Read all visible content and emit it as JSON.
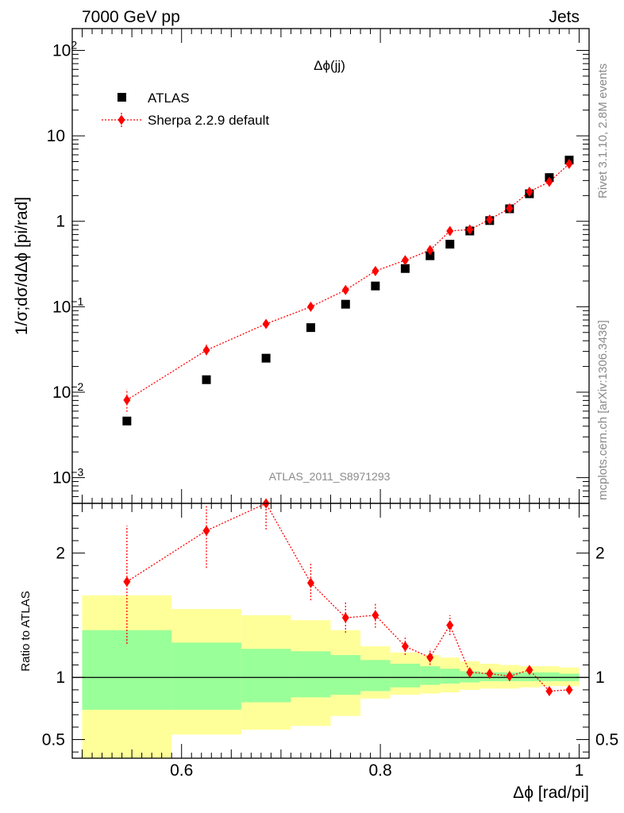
{
  "header": {
    "left": "7000 GeV pp",
    "right": "Jets"
  },
  "side_labels": {
    "rivet": "Rivet 3.1.10,  2.8M events",
    "mcplots": "mcplots.cern.ch [arXiv:1306.3436]"
  },
  "analysis_id": "ATLAS_2011_S8971293",
  "colors": {
    "data": "#000000",
    "mc": "#ff0000",
    "band_inner": "#99ff99",
    "band_outer": "#ffff99"
  },
  "chart_data": [
    {
      "type": "scatter",
      "title": "Δϕ(jj)",
      "xlabel": "",
      "ylabel": "1/σ;dσ/dΔϕ [pi/rad]",
      "xlim": [
        0.49,
        1.01
      ],
      "ylim": [
        0.0005,
        180
      ],
      "yscale": "log",
      "ytick_labels": [
        {
          "base": "10",
          "exp": "2",
          "value": 100
        },
        {
          "base": "10",
          "exp": "",
          "value": 10
        },
        {
          "base": "1",
          "exp": "",
          "value": 1
        },
        {
          "base": "10",
          "exp": "−1",
          "value": 0.1
        },
        {
          "base": "10",
          "exp": "−2",
          "value": 0.01
        },
        {
          "base": "10",
          "exp": "−3",
          "value": 0.001
        }
      ],
      "legend": {
        "position": "top-left",
        "entries": [
          "ATLAS",
          "Sherpa 2.2.9 default"
        ]
      },
      "series": [
        {
          "name": "ATLAS",
          "marker": "square",
          "x": [
            0.545,
            0.625,
            0.685,
            0.73,
            0.765,
            0.795,
            0.825,
            0.85,
            0.87,
            0.89,
            0.91,
            0.93,
            0.95,
            0.97,
            0.99
          ],
          "y": [
            0.0046,
            0.014,
            0.025,
            0.057,
            0.107,
            0.175,
            0.28,
            0.395,
            0.54,
            0.77,
            1.02,
            1.4,
            2.1,
            3.25,
            5.2
          ]
        },
        {
          "name": "Sherpa 2.2.9 default",
          "marker": "diamond",
          "x": [
            0.545,
            0.625,
            0.685,
            0.73,
            0.765,
            0.795,
            0.825,
            0.85,
            0.87,
            0.89,
            0.91,
            0.93,
            0.95,
            0.97,
            0.99
          ],
          "y": [
            0.0081,
            0.031,
            0.063,
            0.1,
            0.157,
            0.262,
            0.35,
            0.46,
            0.77,
            0.8,
            1.05,
            1.42,
            2.22,
            2.9,
            4.7
          ],
          "yerr_low": [
            0.0022,
            0.004,
            0.006,
            0.008,
            0.013,
            0.02,
            0.02,
            0.03,
            0.05,
            0.06,
            0.04,
            0.07,
            0.1,
            0.25,
            0.3
          ],
          "yerr_high": [
            0.0027,
            0.005,
            0.007,
            0.01,
            0.017,
            0.022,
            0.02,
            0.03,
            0.06,
            0.06,
            0.04,
            0.08,
            0.12,
            0.27,
            0.35
          ]
        }
      ]
    },
    {
      "type": "scatter",
      "xlabel": "Δϕ [rad/pi]",
      "ylabel": "Ratio to ATLAS",
      "xlim": [
        0.49,
        1.01
      ],
      "ylim": [
        0.35,
        2.4
      ],
      "xticks": [
        0.6,
        0.8,
        1
      ],
      "xtick_labels": [
        "0.6",
        "0.8",
        "1"
      ],
      "yticks": [
        0.5,
        1,
        2
      ],
      "ytick_labels": [
        "0.5",
        "1",
        "2"
      ],
      "reference_line": 1,
      "bands": {
        "edges": [
          0.5,
          0.59,
          0.66,
          0.71,
          0.75,
          0.78,
          0.81,
          0.84,
          0.86,
          0.88,
          0.9,
          0.92,
          0.94,
          0.96,
          0.98,
          1.0
        ],
        "inner_low": [
          0.74,
          0.74,
          0.8,
          0.84,
          0.86,
          0.89,
          0.92,
          0.94,
          0.95,
          0.96,
          0.97,
          0.97,
          0.97,
          0.97,
          0.97
        ],
        "inner_high": [
          1.38,
          1.28,
          1.23,
          1.21,
          1.18,
          1.14,
          1.11,
          1.09,
          1.07,
          1.05,
          1.04,
          1.04,
          1.04,
          1.04,
          1.03
        ],
        "outer_low": [
          0.32,
          0.54,
          0.58,
          0.61,
          0.69,
          0.83,
          0.86,
          0.87,
          0.88,
          0.9,
          0.91,
          0.91,
          0.92,
          0.93,
          0.93
        ],
        "outer_high": [
          1.66,
          1.55,
          1.5,
          1.46,
          1.38,
          1.25,
          1.2,
          1.18,
          1.16,
          1.13,
          1.11,
          1.1,
          1.09,
          1.09,
          1.08
        ]
      },
      "series": [
        {
          "name": "Sherpa 2.2.9 default",
          "marker": "diamond",
          "x": [
            0.545,
            0.625,
            0.685,
            0.73,
            0.765,
            0.795,
            0.825,
            0.85,
            0.87,
            0.89,
            0.91,
            0.93,
            0.95,
            0.97,
            0.99
          ],
          "y": [
            1.77,
            2.18,
            2.44,
            1.76,
            1.48,
            1.5,
            1.25,
            1.16,
            1.42,
            1.04,
            1.03,
            1.01,
            1.06,
            0.89,
            0.9
          ],
          "yerr_low": [
            0.5,
            0.3,
            0.25,
            0.14,
            0.12,
            0.1,
            0.07,
            0.06,
            0.08,
            0.04,
            0.04,
            0.04,
            0.03,
            0.03,
            0.02
          ],
          "yerr_high": [
            0.45,
            0.2,
            0.1,
            0.16,
            0.13,
            0.1,
            0.07,
            0.07,
            0.08,
            0.04,
            0.04,
            0.04,
            0.03,
            0.03,
            0.02
          ]
        }
      ]
    }
  ]
}
